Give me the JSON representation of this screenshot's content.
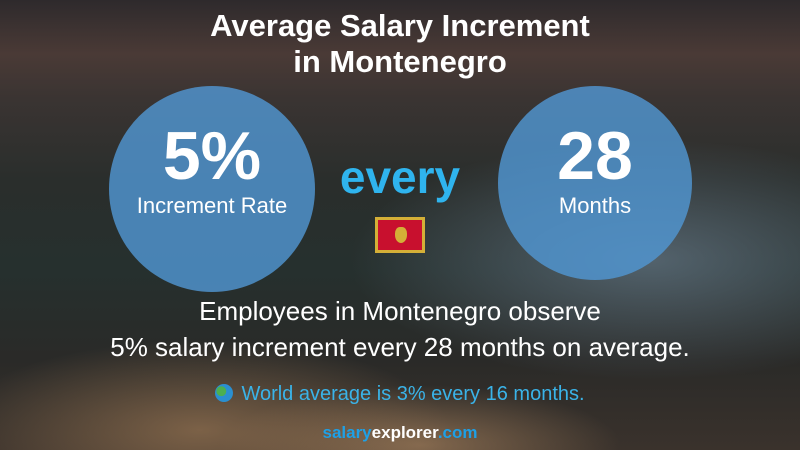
{
  "title": {
    "line1": "Average Salary Increment",
    "line2": "in Montenegro"
  },
  "rate": {
    "value": "5%",
    "label": "Increment Rate"
  },
  "connector": "every",
  "period": {
    "value": "28",
    "label": "Months"
  },
  "flag": {
    "country": "Montenegro",
    "icon": "montenegro-flag-icon"
  },
  "description": {
    "line1": "Employees in Montenegro observe",
    "line2": "5% salary increment every 28 months on average."
  },
  "world": {
    "icon": "globe-icon",
    "text": "World average is 3% every 16 months."
  },
  "brand": {
    "part1": "salary",
    "part2": "explorer",
    "part3": ".com"
  },
  "colors": {
    "accent": "#2fb4ee",
    "circle": "#5096d2"
  }
}
